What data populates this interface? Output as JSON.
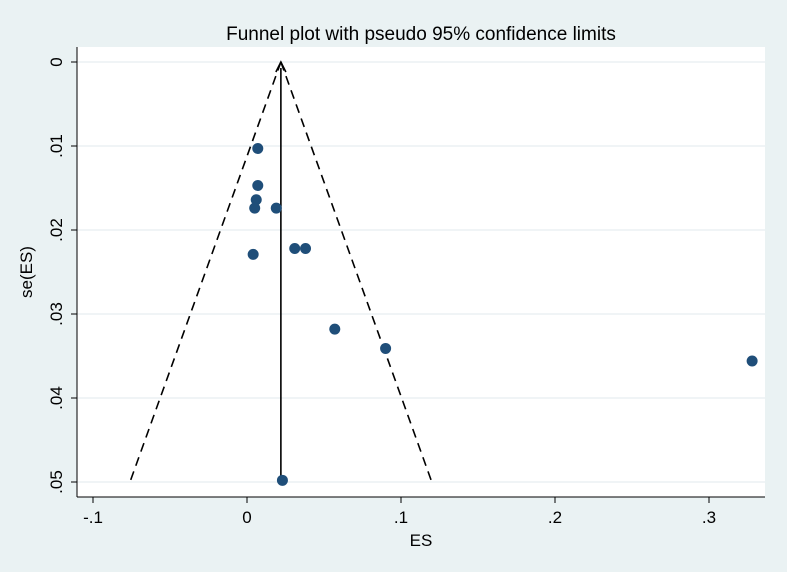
{
  "chart_data": {
    "type": "scatter",
    "title": "Funnel plot with pseudo 95% confidence limits",
    "xlabel": "ES",
    "ylabel": "se(ES)",
    "xlim": [
      -0.1,
      0.33
    ],
    "ylim": [
      0,
      0.05
    ],
    "y_reversed": true,
    "grid": true,
    "x_ticks": [
      {
        "value": -0.1,
        "label": "-.1"
      },
      {
        "value": 0,
        "label": "0"
      },
      {
        "value": 0.1,
        "label": ".1"
      },
      {
        "value": 0.2,
        "label": ".2"
      },
      {
        "value": 0.3,
        "label": ".3"
      }
    ],
    "y_ticks": [
      {
        "value": 0,
        "label": "0"
      },
      {
        "value": 0.01,
        "label": ".01"
      },
      {
        "value": 0.02,
        "label": ".02"
      },
      {
        "value": 0.03,
        "label": ".03"
      },
      {
        "value": 0.04,
        "label": ".04"
      },
      {
        "value": 0.05,
        "label": ".05"
      }
    ],
    "pooled_effect": 0.022,
    "ci_lower_at_max_se": -0.076,
    "ci_upper_at_max_se": 0.12,
    "max_se": 0.05,
    "points": [
      {
        "x": 0.007,
        "y": 0.0103
      },
      {
        "x": 0.007,
        "y": 0.0147
      },
      {
        "x": 0.006,
        "y": 0.0164
      },
      {
        "x": 0.005,
        "y": 0.0174
      },
      {
        "x": 0.019,
        "y": 0.0174
      },
      {
        "x": 0.004,
        "y": 0.0229
      },
      {
        "x": 0.031,
        "y": 0.0222
      },
      {
        "x": 0.038,
        "y": 0.0222
      },
      {
        "x": 0.057,
        "y": 0.0318
      },
      {
        "x": 0.09,
        "y": 0.0341
      },
      {
        "x": 0.328,
        "y": 0.0356
      },
      {
        "x": 0.023,
        "y": 0.0498
      }
    ],
    "colors": {
      "background": "#eaf2f3",
      "plot_area": "#ffffff",
      "grid": "#e6eef0",
      "marker": "#1f4e79",
      "line": "#000000"
    }
  }
}
